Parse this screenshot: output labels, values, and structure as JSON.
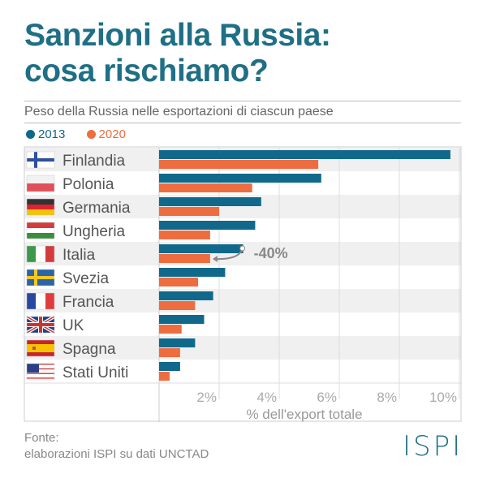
{
  "title_line1": "Sanzioni alla Russia:",
  "title_line2": "cosa rischiamo?",
  "subtitle": "Peso della Russia nelle esportazioni di ciascun paese",
  "source_line1": "Fonte:",
  "source_line2": "elaborazioni ISPI su dati UNCTAD",
  "logo": "ISPI",
  "colors": {
    "s2013": "#10698a",
    "s2020": "#ee6d40",
    "title": "#1f6f86"
  },
  "chart_data": {
    "type": "bar",
    "orientation": "horizontal",
    "title": "Peso della Russia nelle esportazioni di ciascun paese",
    "categories": [
      "Finlandia",
      "Polonia",
      "Germania",
      "Ungheria",
      "Italia",
      "Svezia",
      "Francia",
      "UK",
      "Spagna",
      "Stati Uniti"
    ],
    "series": [
      {
        "name": "2013",
        "values": [
          9.7,
          5.4,
          3.4,
          3.2,
          2.8,
          2.2,
          1.8,
          1.5,
          1.2,
          0.7
        ]
      },
      {
        "name": "2020",
        "values": [
          5.3,
          3.1,
          2.0,
          1.7,
          1.7,
          1.3,
          1.2,
          0.75,
          0.7,
          0.35
        ]
      }
    ],
    "xlabel": "% dell'export totale",
    "xticks": [
      "2%",
      "4%",
      "6%",
      "8%",
      "10%"
    ],
    "xtick_values": [
      2,
      4,
      6,
      8,
      10
    ],
    "xlim": [
      0,
      10.2
    ],
    "annotation": {
      "text": "-40%",
      "category": "Italia"
    },
    "grid": true
  }
}
